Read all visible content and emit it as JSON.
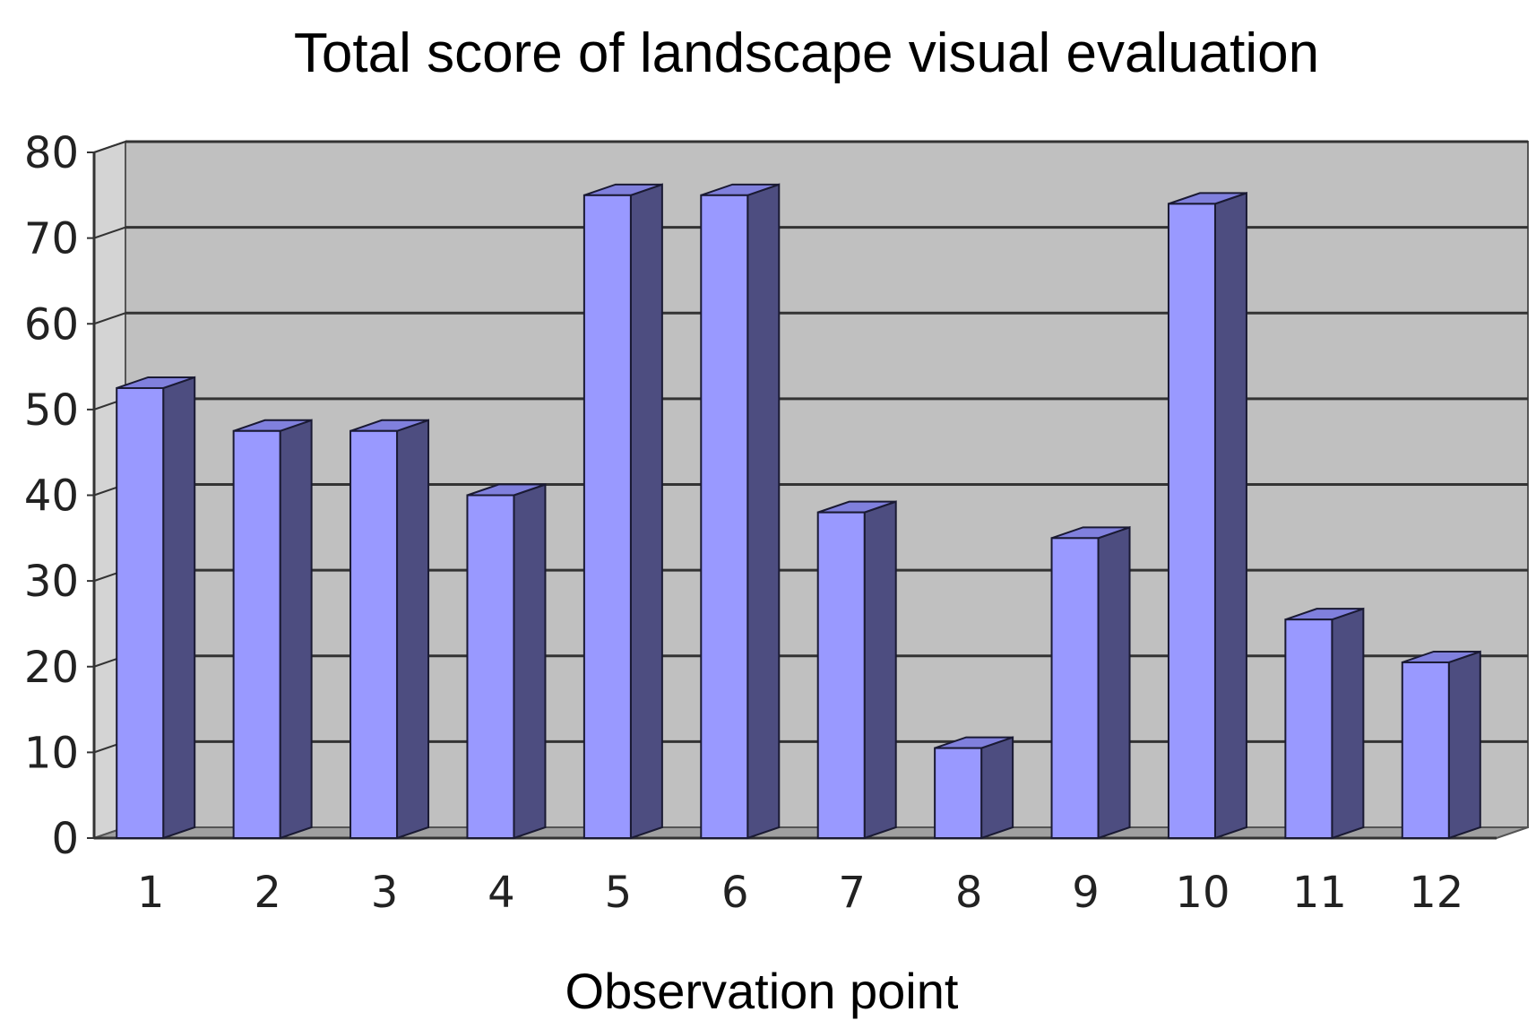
{
  "chart_data": {
    "type": "bar",
    "style": "3d-column",
    "title": "Total score of landscape visual evaluation",
    "xlabel": "Observation point",
    "ylabel": "",
    "categories": [
      "1",
      "2",
      "3",
      "4",
      "5",
      "6",
      "7",
      "8",
      "9",
      "10",
      "11",
      "12"
    ],
    "values": [
      52.5,
      47.5,
      47.5,
      40,
      75,
      75,
      38,
      10.5,
      35,
      74,
      25.5,
      20.5
    ],
    "ylim": [
      0,
      80
    ],
    "yticks": [
      "0",
      "10",
      "20",
      "30",
      "40",
      "50",
      "60",
      "70",
      "80"
    ],
    "grid": true,
    "legend": "none",
    "colors": {
      "bar_front": "#9999ff",
      "bar_side": "#4d4d80",
      "bar_top": "#8080dd",
      "plot_background": "#c0c0c0",
      "gridline": "#333333"
    }
  }
}
